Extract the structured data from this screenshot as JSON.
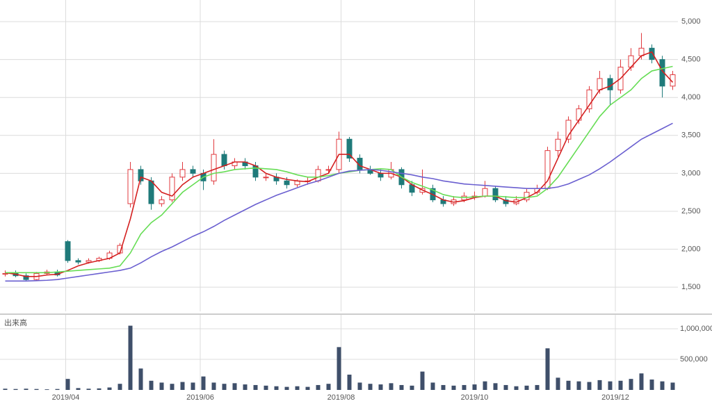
{
  "chart_data": {
    "type": "candlestick",
    "volume_label": "出来高",
    "open": [
      1670,
      1680,
      1650,
      1600,
      1680,
      1700,
      2100,
      1850,
      1830,
      1850,
      1880,
      1950,
      2600,
      3050,
      2900,
      2600,
      2650,
      2950,
      3050,
      3000,
      2900,
      3250,
      3100,
      3150,
      3100,
      2950,
      2950,
      2900,
      2850,
      2900,
      2900,
      3050,
      3050,
      3450,
      3200,
      3050,
      3000,
      2950,
      3050,
      2850,
      2750,
      2800,
      2650,
      2600,
      2650,
      2700,
      2700,
      2800,
      2650,
      2600,
      2650,
      2750,
      2800,
      3300,
      3450,
      3700,
      3850,
      4100,
      4250,
      4100,
      4400,
      4550,
      4650,
      4500,
      4150
    ],
    "high": [
      1720,
      1720,
      1680,
      1700,
      1730,
      1730,
      2120,
      1880,
      1880,
      1900,
      1980,
      2080,
      3150,
      3100,
      2950,
      2700,
      3000,
      3150,
      3100,
      3050,
      3450,
      3300,
      3200,
      3200,
      3150,
      3000,
      3000,
      2950,
      2920,
      2950,
      3100,
      3100,
      3550,
      3480,
      3250,
      3100,
      3050,
      3150,
      3080,
      2900,
      3050,
      2850,
      2700,
      2700,
      2750,
      2760,
      2900,
      2830,
      2700,
      2700,
      2800,
      2850,
      3350,
      3550,
      3750,
      3900,
      4150,
      4350,
      4300,
      4500,
      4650,
      4850,
      4700,
      4550,
      4350
    ],
    "low": [
      1640,
      1630,
      1580,
      1580,
      1660,
      1640,
      1820,
      1800,
      1810,
      1830,
      1860,
      1930,
      2550,
      2850,
      2520,
      2560,
      2620,
      2900,
      2950,
      2780,
      2850,
      3050,
      3050,
      3050,
      2900,
      2900,
      2850,
      2800,
      2820,
      2850,
      2880,
      3000,
      3000,
      3150,
      3000,
      2980,
      2900,
      2920,
      2800,
      2700,
      2720,
      2620,
      2560,
      2570,
      2620,
      2650,
      2680,
      2620,
      2560,
      2580,
      2620,
      2720,
      2780,
      3220,
      3400,
      3650,
      3800,
      4050,
      3900,
      4050,
      4350,
      4500,
      4450,
      4000,
      4100
    ],
    "close": [
      1680,
      1650,
      1600,
      1680,
      1700,
      1660,
      1850,
      1830,
      1850,
      1880,
      1950,
      2050,
      3050,
      2900,
      2600,
      2650,
      2950,
      3050,
      3000,
      2900,
      3250,
      3100,
      3150,
      3100,
      2950,
      2950,
      2900,
      2850,
      2900,
      2900,
      3050,
      3050,
      3450,
      3200,
      3050,
      3000,
      2950,
      3050,
      2850,
      2750,
      2800,
      2650,
      2600,
      2650,
      2700,
      2700,
      2800,
      2650,
      2600,
      2650,
      2750,
      2800,
      3300,
      3450,
      3700,
      3850,
      4100,
      4250,
      4100,
      4400,
      4550,
      4650,
      4500,
      4150,
      4300
    ],
    "up_color": "#e0393e",
    "down_color": "#1f7a7a",
    "moving_averages": [
      {
        "color": "#d42020",
        "values": [
          1690,
          1670,
          1640,
          1640,
          1660,
          1670,
          1720,
          1780,
          1820,
          1850,
          1880,
          1950,
          2400,
          2950,
          2900,
          2750,
          2700,
          2850,
          2950,
          3000,
          3050,
          3100,
          3150,
          3150,
          3100,
          3000,
          2950,
          2920,
          2900,
          2890,
          2950,
          3000,
          3250,
          3250,
          3100,
          3050,
          3000,
          3000,
          2950,
          2850,
          2780,
          2720,
          2650,
          2620,
          2640,
          2680,
          2700,
          2700,
          2640,
          2620,
          2680,
          2750,
          2900,
          3200,
          3500,
          3700,
          3900,
          4100,
          4150,
          4250,
          4400,
          4550,
          4600,
          4350,
          4200
        ]
      },
      {
        "color": "#66dd55",
        "values": [
          1690,
          1690,
          1690,
          1690,
          1690,
          1700,
          1710,
          1720,
          1730,
          1740,
          1750,
          1780,
          1950,
          2200,
          2350,
          2450,
          2600,
          2750,
          2850,
          2950,
          3000,
          3020,
          3050,
          3060,
          3070,
          3060,
          3050,
          3020,
          2980,
          2950,
          2950,
          2970,
          3000,
          3020,
          3040,
          3050,
          3060,
          3050,
          2950,
          2880,
          2830,
          2780,
          2720,
          2690,
          2680,
          2690,
          2700,
          2700,
          2690,
          2680,
          2680,
          2700,
          2800,
          2950,
          3150,
          3350,
          3550,
          3750,
          3900,
          4000,
          4100,
          4250,
          4350,
          4380,
          4410
        ]
      },
      {
        "color": "#6a5fd0",
        "values": [
          1580,
          1580,
          1580,
          1585,
          1590,
          1600,
          1620,
          1640,
          1660,
          1680,
          1700,
          1720,
          1750,
          1820,
          1900,
          1970,
          2030,
          2100,
          2170,
          2230,
          2300,
          2380,
          2450,
          2520,
          2590,
          2650,
          2710,
          2760,
          2810,
          2860,
          2900,
          2950,
          3000,
          3030,
          3040,
          3050,
          3040,
          3020,
          3000,
          2980,
          2950,
          2930,
          2900,
          2880,
          2860,
          2850,
          2840,
          2830,
          2820,
          2810,
          2800,
          2800,
          2800,
          2820,
          2860,
          2920,
          2980,
          3060,
          3150,
          3250,
          3350,
          3450,
          3520,
          3590,
          3660
        ]
      }
    ],
    "ylim": [
      1180,
      5285
    ],
    "yticks": [
      {
        "value": 1500,
        "label": "1,500"
      },
      {
        "value": 2000,
        "label": "2,000"
      },
      {
        "value": 2500,
        "label": "2,500"
      },
      {
        "value": 3000,
        "label": "3,000"
      },
      {
        "value": 3500,
        "label": "3,500"
      },
      {
        "value": 4000,
        "label": "4,000"
      },
      {
        "value": 4500,
        "label": "4,500"
      },
      {
        "value": 5000,
        "label": "5,000"
      }
    ],
    "xticks": [
      {
        "value": 5.8,
        "label": "2019/04"
      },
      {
        "value": 18.7,
        "label": "2019/06"
      },
      {
        "value": 32.2,
        "label": "2019/08"
      },
      {
        "value": 45,
        "label": "2019/10"
      },
      {
        "value": 58.5,
        "label": "2019/12"
      }
    ],
    "grid": true,
    "volume": {
      "color": "#3f4f6a",
      "values": [
        20000,
        15000,
        20000,
        15000,
        10000,
        15000,
        180000,
        30000,
        20000,
        25000,
        40000,
        100000,
        1050000,
        350000,
        150000,
        120000,
        100000,
        130000,
        120000,
        220000,
        120000,
        100000,
        110000,
        90000,
        80000,
        70000,
        60000,
        50000,
        60000,
        50000,
        80000,
        100000,
        700000,
        250000,
        120000,
        100000,
        90000,
        110000,
        80000,
        70000,
        300000,
        120000,
        80000,
        70000,
        80000,
        90000,
        140000,
        110000,
        80000,
        60000,
        70000,
        80000,
        680000,
        200000,
        150000,
        140000,
        130000,
        160000,
        140000,
        150000,
        180000,
        270000,
        170000,
        140000,
        120000
      ],
      "ylim": [
        0,
        1227000
      ],
      "yticks": [
        {
          "value": 500000,
          "label": "500,000"
        },
        {
          "value": 1000000,
          "label": "1,000,000"
        }
      ]
    }
  }
}
